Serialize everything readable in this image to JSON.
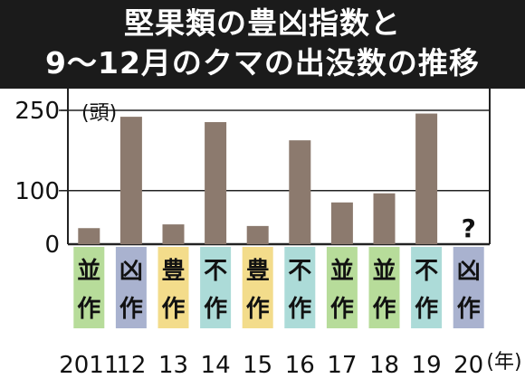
{
  "title": {
    "line1": "堅果類の豊凶指数と",
    "line2": "9～12月のクマの出没数の推移"
  },
  "chart_data": {
    "type": "bar",
    "title": "堅果類の豊凶指数と 9～12月のクマの出没数の推移",
    "y_unit": "(頭)",
    "x_unit": "(年)",
    "yticks": [
      0,
      100,
      250
    ],
    "ylim": [
      0,
      250
    ],
    "grid": "horizontal line at 100",
    "categories": [
      "2011",
      "12",
      "13",
      "14",
      "15",
      "16",
      "17",
      "18",
      "19",
      "20"
    ],
    "values": [
      30,
      238,
      37,
      228,
      34,
      194,
      78,
      95,
      244,
      null
    ],
    "missing_value_label": "?",
    "bar_color": "#8c7a6e",
    "nut_index": [
      "並作",
      "凶作",
      "豊作",
      "不作",
      "豊作",
      "不作",
      "並作",
      "並作",
      "不作",
      "凶作"
    ],
    "nut_index_colors": {
      "並作": "#b7dc9a",
      "凶作": "#a9b2cf",
      "豊作": "#f3dc8b",
      "不作": "#acdbd8"
    }
  }
}
